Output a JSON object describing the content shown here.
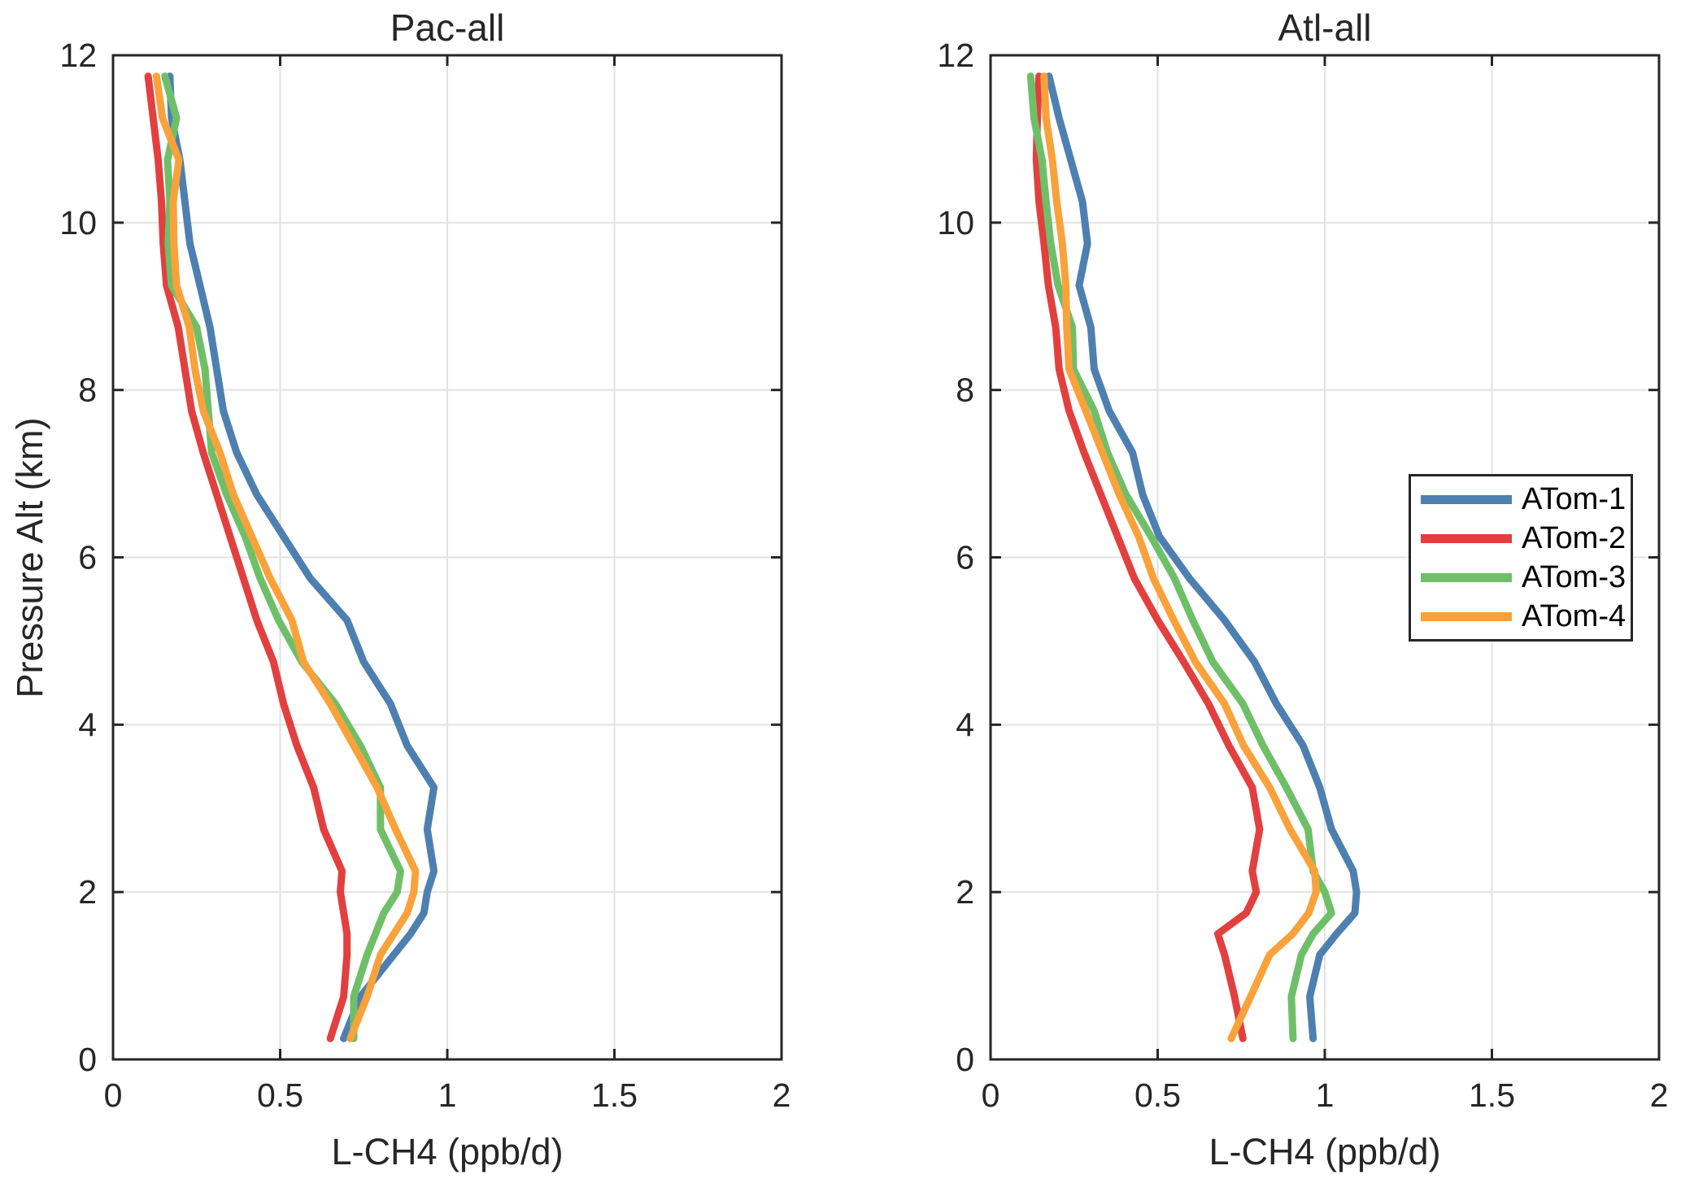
{
  "page": {
    "background": "#ffffff",
    "axis_color": "#262626",
    "grid_color": "#e2e2e2"
  },
  "legend": {
    "position": "right panel, middle-right, boxed",
    "entries": [
      {
        "label": "ATom-1",
        "color": "#4D80B0"
      },
      {
        "label": "ATom-2",
        "color": "#E2403F"
      },
      {
        "label": "ATom-3",
        "color": "#6FBF69"
      },
      {
        "label": "ATom-4",
        "color": "#F9A23B"
      }
    ]
  },
  "chart_data": [
    {
      "type": "line",
      "title": "Pac-all",
      "xlabel": "L-CH4 (ppb/d)",
      "ylabel": "Pressure Alt (km)",
      "xlim": [
        0,
        2
      ],
      "ylim": [
        0,
        12
      ],
      "grid": true,
      "xticks": {
        "values": [
          0,
          0.5,
          1,
          1.5,
          2
        ],
        "labels": [
          "0",
          "0.5",
          "1",
          "1.5",
          "2"
        ]
      },
      "yticks": {
        "values": [
          0,
          2,
          4,
          6,
          8,
          10,
          12
        ],
        "labels": [
          "0",
          "2",
          "4",
          "6",
          "8",
          "10",
          "12"
        ]
      },
      "altitude_km": [
        0.25,
        0.75,
        1.25,
        1.5,
        1.75,
        2.0,
        2.25,
        2.75,
        3.25,
        3.75,
        4.25,
        4.75,
        5.25,
        5.75,
        6.25,
        6.75,
        7.25,
        7.75,
        8.25,
        8.75,
        9.25,
        9.75,
        10.25,
        10.75,
        11.25,
        11.75
      ],
      "series": [
        {
          "name": "ATom-1",
          "color": "#4D80B0",
          "values": [
            0.69,
            0.74,
            0.84,
            0.89,
            0.93,
            0.94,
            0.96,
            0.94,
            0.96,
            0.88,
            0.83,
            0.75,
            0.7,
            0.59,
            0.51,
            0.43,
            0.37,
            0.33,
            0.31,
            0.29,
            0.26,
            0.23,
            0.215,
            0.2,
            0.175,
            0.17
          ]
        },
        {
          "name": "ATom-2",
          "color": "#E2403F",
          "values": [
            0.65,
            0.69,
            0.7,
            0.7,
            0.69,
            0.68,
            0.685,
            0.63,
            0.6,
            0.55,
            0.51,
            0.48,
            0.43,
            0.39,
            0.35,
            0.31,
            0.27,
            0.235,
            0.215,
            0.195,
            0.16,
            0.15,
            0.145,
            0.135,
            0.12,
            0.105
          ]
        },
        {
          "name": "ATom-3",
          "color": "#6FBF69",
          "values": [
            0.72,
            0.72,
            0.76,
            0.785,
            0.81,
            0.85,
            0.86,
            0.8,
            0.8,
            0.74,
            0.665,
            0.565,
            0.495,
            0.44,
            0.395,
            0.34,
            0.295,
            0.285,
            0.275,
            0.25,
            0.175,
            0.165,
            0.17,
            0.163,
            0.19,
            0.155
          ]
        },
        {
          "name": "ATom-4",
          "color": "#F9A23B",
          "values": [
            0.71,
            0.76,
            0.8,
            0.84,
            0.88,
            0.9,
            0.905,
            0.845,
            0.79,
            0.72,
            0.65,
            0.57,
            0.535,
            0.47,
            0.415,
            0.36,
            0.32,
            0.27,
            0.245,
            0.228,
            0.19,
            0.182,
            0.18,
            0.197,
            0.148,
            0.13
          ]
        }
      ]
    },
    {
      "type": "line",
      "title": "Atl-all",
      "xlabel": "L-CH4 (ppb/d)",
      "ylabel": "",
      "xlim": [
        0,
        2
      ],
      "ylim": [
        0,
        12
      ],
      "grid": true,
      "xticks": {
        "values": [
          0,
          0.5,
          1,
          1.5,
          2
        ],
        "labels": [
          "0",
          "0.5",
          "1",
          "1.5",
          "2"
        ]
      },
      "yticks": {
        "values": [
          0,
          2,
          4,
          6,
          8,
          10,
          12
        ],
        "labels": [
          "0",
          "2",
          "4",
          "6",
          "8",
          "10",
          "12"
        ]
      },
      "altitude_km": [
        0.25,
        0.75,
        1.25,
        1.5,
        1.75,
        2.0,
        2.25,
        2.75,
        3.25,
        3.75,
        4.25,
        4.75,
        5.25,
        5.75,
        6.25,
        6.75,
        7.25,
        7.75,
        8.25,
        8.75,
        9.25,
        9.75,
        10.25,
        10.75,
        11.25,
        11.75
      ],
      "series": [
        {
          "name": "ATom-1",
          "color": "#4D80B0",
          "values": [
            0.965,
            0.955,
            0.985,
            1.035,
            1.09,
            1.095,
            1.085,
            1.02,
            0.985,
            0.935,
            0.855,
            0.79,
            0.7,
            0.595,
            0.505,
            0.455,
            0.425,
            0.355,
            0.31,
            0.3,
            0.265,
            0.29,
            0.275,
            0.24,
            0.205,
            0.175
          ]
        },
        {
          "name": "ATom-2",
          "color": "#E2403F",
          "values": [
            0.755,
            0.73,
            0.7,
            0.68,
            0.765,
            0.795,
            0.783,
            0.805,
            0.783,
            0.713,
            0.652,
            0.578,
            0.5,
            0.43,
            0.38,
            0.33,
            0.28,
            0.235,
            0.205,
            0.195,
            0.173,
            0.16,
            0.145,
            0.137,
            0.14,
            0.145
          ]
        },
        {
          "name": "ATom-3",
          "color": "#6FBF69",
          "values": [
            0.905,
            0.9,
            0.93,
            0.965,
            1.02,
            1.0,
            0.965,
            0.95,
            0.885,
            0.815,
            0.755,
            0.665,
            0.605,
            0.55,
            0.48,
            0.405,
            0.35,
            0.31,
            0.248,
            0.245,
            0.202,
            0.18,
            0.166,
            0.154,
            0.13,
            0.12
          ]
        },
        {
          "name": "ATom-4",
          "color": "#F9A23B",
          "values": [
            0.72,
            0.778,
            0.835,
            0.904,
            0.952,
            0.974,
            0.97,
            0.896,
            0.835,
            0.757,
            0.7,
            0.613,
            0.548,
            0.487,
            0.443,
            0.385,
            0.335,
            0.285,
            0.235,
            0.228,
            0.225,
            0.215,
            0.198,
            0.185,
            0.166,
            0.16
          ]
        }
      ]
    }
  ]
}
